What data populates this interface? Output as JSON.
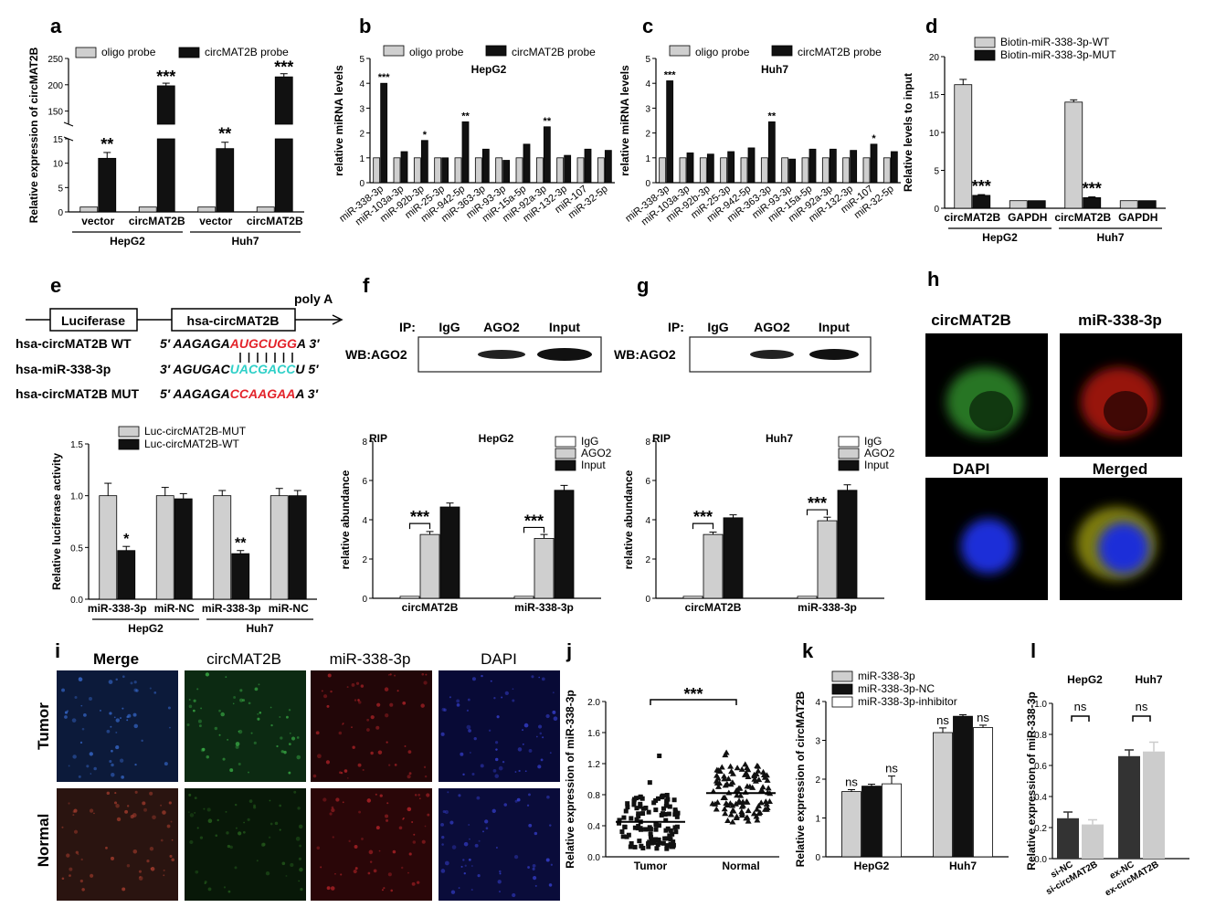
{
  "panel_letters": [
    "a",
    "b",
    "c",
    "d",
    "e",
    "f",
    "g",
    "h",
    "i",
    "j",
    "k",
    "l"
  ],
  "colors": {
    "light": "#cfcfcf",
    "dark": "#111111",
    "white": "#ffffff",
    "red": "#e3242b",
    "cyan": "#2fd0c8",
    "green": "#3fb53a"
  },
  "chart_data": [
    {
      "panel": "a",
      "type": "bar",
      "ylabel": "Relative expression of circMAT2B",
      "categories": [
        "vector",
        "circMAT2B",
        "vector",
        "circMAT2B"
      ],
      "groups": [
        {
          "label": "HepG2",
          "span": [
            0,
            1
          ]
        },
        {
          "label": "Huh7",
          "span": [
            2,
            3
          ]
        }
      ],
      "axis_break": true,
      "lower_ylim": [
        0,
        15
      ],
      "upper_ylim": [
        125,
        250
      ],
      "lower_ticks": [
        "0",
        "5",
        "10",
        "15"
      ],
      "upper_ticks": [
        "150",
        "200",
        "250"
      ],
      "series": [
        {
          "name": "oligo probe",
          "color": "light",
          "values": [
            1,
            1,
            1,
            1
          ],
          "errors": [
            0.1,
            0.1,
            0.1,
            0.1
          ]
        },
        {
          "name": "circMAT2B probe",
          "color": "dark",
          "values": [
            11,
            198,
            13,
            215
          ],
          "errors": [
            1.2,
            5,
            1.3,
            6
          ]
        }
      ],
      "stars": [
        "**",
        "***",
        "**",
        "***"
      ]
    },
    {
      "panel": "b",
      "type": "bar",
      "subtitle": "HepG2",
      "ylabel": "relative miRNA levels",
      "ylim": [
        0,
        5
      ],
      "yticks": [
        "0",
        "1",
        "2",
        "3",
        "4",
        "5"
      ],
      "categories": [
        "miR-338-3p",
        "miR-103a-3p",
        "miR-92b-3p",
        "miR-25-3p",
        "miR-942-5p",
        "miR-363-3p",
        "miR-93-3p",
        "miR-15a-5p",
        "miR-92a-3p",
        "miR-132-3p",
        "miR-107",
        "miR-32-5p"
      ],
      "series": [
        {
          "name": "oligo probe",
          "color": "light",
          "values": [
            1,
            1,
            1,
            1,
            1,
            1,
            1,
            1,
            1,
            1,
            1,
            1
          ]
        },
        {
          "name": "circMAT2B probe",
          "color": "dark",
          "values": [
            4.0,
            1.25,
            1.7,
            1.0,
            2.45,
            1.35,
            0.9,
            1.55,
            2.25,
            1.1,
            1.35,
            1.3
          ]
        }
      ],
      "stars": [
        "***",
        "",
        "*",
        "",
        "**",
        "",
        "",
        "",
        "**",
        "",
        "",
        ""
      ]
    },
    {
      "panel": "c",
      "type": "bar",
      "subtitle": "Huh7",
      "ylabel": "relative miRNA levels",
      "ylim": [
        0,
        5
      ],
      "yticks": [
        "0",
        "1",
        "2",
        "3",
        "4",
        "5"
      ],
      "categories": [
        "miR-338-3p",
        "miR-103a-3p",
        "miR-92b-3p",
        "miR-25-3p",
        "miR-942-5p",
        "miR-363-3p",
        "miR-93-3p",
        "miR-15a-5p",
        "miR-92a-3p",
        "miR-132-3p",
        "miR-107",
        "miR-32-5p"
      ],
      "series": [
        {
          "name": "oligo probe",
          "color": "light",
          "values": [
            1,
            1,
            1,
            1,
            1,
            1,
            1,
            1,
            1,
            1,
            1,
            1
          ]
        },
        {
          "name": "circMAT2B probe",
          "color": "dark",
          "values": [
            4.1,
            1.2,
            1.15,
            1.25,
            1.4,
            2.45,
            0.95,
            1.35,
            1.35,
            1.3,
            1.55,
            1.25
          ]
        }
      ],
      "stars": [
        "***",
        "",
        "",
        "",
        "",
        "**",
        "",
        "",
        "",
        "",
        "*",
        ""
      ]
    },
    {
      "panel": "d",
      "type": "bar",
      "ylabel": "Relative levels to input",
      "ylim": [
        0,
        20
      ],
      "yticks": [
        "0",
        "5",
        "10",
        "15",
        "20"
      ],
      "categories": [
        "circMAT2B",
        "GAPDH",
        "circMAT2B",
        "GAPDH"
      ],
      "groups": [
        {
          "label": "HepG2",
          "span": [
            0,
            1
          ]
        },
        {
          "label": "Huh7",
          "span": [
            2,
            3
          ]
        }
      ],
      "series": [
        {
          "name": "Biotin-miR-338-3p-WT",
          "color": "light",
          "values": [
            16.3,
            1.0,
            14.0,
            1.0
          ],
          "errors": [
            0.7,
            0,
            0.3,
            0
          ]
        },
        {
          "name": "Biotin-miR-338-3p-MUT",
          "color": "dark",
          "values": [
            1.7,
            1.0,
            1.4,
            1.0
          ],
          "errors": [
            0.1,
            0,
            0.1,
            0
          ]
        }
      ],
      "stars": [
        "***",
        "",
        "***",
        ""
      ]
    },
    {
      "panel": "e",
      "type": "bar",
      "ylabel": "Relative luciferase activity",
      "ylim": [
        0,
        1.5
      ],
      "yticks": [
        "0.0",
        "0.5",
        "1.0",
        "1.5"
      ],
      "categories": [
        "miR-338-3p",
        "miR-NC",
        "miR-338-3p",
        "miR-NC"
      ],
      "groups": [
        {
          "label": "HepG2",
          "span": [
            0,
            1
          ]
        },
        {
          "label": "Huh7",
          "span": [
            2,
            3
          ]
        }
      ],
      "series": [
        {
          "name": "Luc-circMAT2B-MUT",
          "color": "light",
          "values": [
            1.0,
            1.0,
            1.0,
            1.0
          ],
          "errors": [
            0.12,
            0.08,
            0.05,
            0.07
          ]
        },
        {
          "name": "Luc-circMAT2B-WT",
          "color": "dark",
          "values": [
            0.47,
            0.97,
            0.44,
            1.0
          ],
          "errors": [
            0.04,
            0.05,
            0.03,
            0.05
          ]
        }
      ],
      "stars": [
        "*",
        "",
        "**",
        ""
      ]
    },
    {
      "panel": "f",
      "type": "bar",
      "title": "RIP",
      "subtitle": "HepG2",
      "ylabel": "relative abundance",
      "ylim": [
        0,
        8
      ],
      "yticks": [
        "0",
        "2",
        "4",
        "6",
        "8"
      ],
      "categories": [
        "circMAT2B",
        "miR-338-3p"
      ],
      "series": [
        {
          "name": "IgG",
          "color": "white",
          "values": [
            0.1,
            0.1
          ]
        },
        {
          "name": "AGO2",
          "color": "light",
          "values": [
            3.25,
            3.05
          ],
          "errors": [
            0.15,
            0.2
          ]
        },
        {
          "name": "Input",
          "color": "dark",
          "values": [
            4.65,
            5.5
          ],
          "errors": [
            0.2,
            0.25
          ]
        }
      ],
      "stars": [
        "***",
        "***"
      ]
    },
    {
      "panel": "g",
      "type": "bar",
      "title": "RIP",
      "subtitle": "Huh7",
      "ylabel": "relative abundance",
      "ylim": [
        0,
        8
      ],
      "yticks": [
        "0",
        "2",
        "4",
        "6",
        "8"
      ],
      "categories": [
        "circMAT2B",
        "miR-338-3p"
      ],
      "series": [
        {
          "name": "IgG",
          "color": "white",
          "values": [
            0.1,
            0.1
          ]
        },
        {
          "name": "AGO2",
          "color": "light",
          "values": [
            3.25,
            3.95
          ],
          "errors": [
            0.12,
            0.18
          ]
        },
        {
          "name": "Input",
          "color": "dark",
          "values": [
            4.1,
            5.5
          ],
          "errors": [
            0.15,
            0.28
          ]
        }
      ],
      "stars": [
        "***",
        "***"
      ]
    },
    {
      "panel": "j",
      "type": "scatter",
      "ylabel": "Relative expression of miR-338-3p",
      "ylim": [
        0,
        2.0
      ],
      "yticks": [
        "0.0",
        "0.4",
        "0.8",
        "1.2",
        "1.6",
        "2.0"
      ],
      "categories": [
        "Tumor",
        "Normal"
      ],
      "means": [
        0.45,
        0.82
      ],
      "stars": "***"
    },
    {
      "panel": "k",
      "type": "bar",
      "ylabel": "Relative expression of circMAT2B",
      "ylim": [
        0,
        4
      ],
      "yticks": [
        "0",
        "1",
        "2",
        "3",
        "4"
      ],
      "categories": [
        "HepG2",
        "Huh7"
      ],
      "series": [
        {
          "name": "miR-338-3p",
          "color": "light",
          "values": [
            1.68,
            3.2
          ],
          "errors": [
            0.05,
            0.12
          ]
        },
        {
          "name": "miR-338-3p-NC",
          "color": "dark",
          "values": [
            1.82,
            3.62
          ],
          "errors": [
            0.05,
            0.04
          ]
        },
        {
          "name": "miR-338-3p-inhibitor",
          "color": "white",
          "values": [
            1.88,
            3.33
          ],
          "errors": [
            0.2,
            0.06
          ]
        }
      ],
      "labels": [
        "ns",
        "ns",
        "ns",
        "ns"
      ]
    },
    {
      "panel": "l",
      "type": "bar",
      "ylabel": "Relative expression of miR-338-3p",
      "ylim": [
        0,
        1.0
      ],
      "yticks": [
        "0.0",
        "0.2",
        "0.4",
        "0.6",
        "0.8",
        "1.0"
      ],
      "categories": [
        "si-NC",
        "si-circMAT2B",
        "ex-NC",
        "ex-circMAT2B"
      ],
      "groups": [
        {
          "label": "HepG2",
          "span": [
            0,
            1
          ]
        },
        {
          "label": "Huh7",
          "span": [
            2,
            3
          ]
        }
      ],
      "values": [
        0.26,
        0.22,
        0.66,
        0.69
      ],
      "errors": [
        0.04,
        0.03,
        0.04,
        0.06
      ],
      "labels": [
        "ns",
        "ns"
      ]
    }
  ],
  "legends": {
    "a": [
      "oligo probe",
      "circMAT2B probe"
    ],
    "b": [
      "oligo probe",
      "circMAT2B probe"
    ],
    "c": [
      "oligo probe",
      "circMAT2B probe"
    ],
    "d": [
      "Biotin-miR-338-3p-WT",
      "Biotin-miR-338-3p-MUT"
    ],
    "e": [
      "Luc-circMAT2B-MUT",
      "Luc-circMAT2B-WT"
    ],
    "f": [
      "IgG",
      "AGO2",
      "Input"
    ],
    "g": [
      "IgG",
      "AGO2",
      "Input"
    ],
    "k": [
      "miR-338-3p",
      "miR-338-3p-NC",
      "miR-338-3p-inhibitor"
    ]
  },
  "construct": {
    "box1": "Luciferase",
    "box2": "hsa-circMAT2B",
    "polyA": "poly A"
  },
  "sequences": [
    {
      "name": "hsa-circMAT2B WT",
      "prefix": "5′ ",
      "black": "AAGAGA",
      "colored": "AUGCUGG",
      "tail": "A 3′",
      "color": "red"
    },
    {
      "name": "hsa-miR-338-3p",
      "prefix": "3′ ",
      "black": "AGUGAC",
      "colored": "UACGACC",
      "tail": "U 5′",
      "color": "cyan"
    },
    {
      "name": "hsa-circMAT2B MUT",
      "prefix": "5′ ",
      "black": "AAGAGA",
      "colored": "CCAAGAA",
      "tail": "A 3′",
      "color": "red"
    }
  ],
  "blots": {
    "f": {
      "ip": "IP:",
      "lanes": [
        "IgG",
        "AGO2",
        "Input"
      ],
      "wb": "WB:AGO2"
    },
    "g": {
      "ip": "IP:",
      "lanes": [
        "IgG",
        "AGO2",
        "Input"
      ],
      "wb": "WB:AGO2"
    }
  },
  "microscopy_h": [
    "circMAT2B",
    "miR-338-3p",
    "DAPI",
    "Merged"
  ],
  "microscopy_i": {
    "columns": [
      "Merge",
      "circMAT2B",
      "miR-338-3p",
      "DAPI"
    ],
    "rows": [
      "Tumor",
      "Normal"
    ]
  }
}
